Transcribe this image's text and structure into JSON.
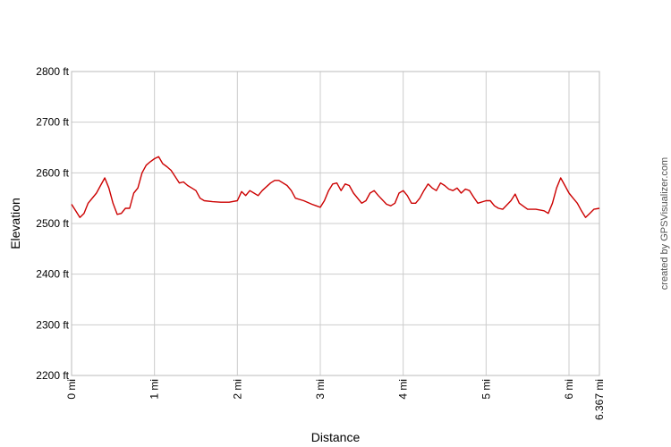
{
  "chart_data": {
    "type": "line",
    "xlabel": "Distance",
    "ylabel": "Elevation",
    "credit": "created by GPSVisualizer.com",
    "xlim": [
      0,
      6.367
    ],
    "ylim": [
      2200,
      2800
    ],
    "grid": true,
    "line_color": "#cc0000",
    "x_ticks": [
      {
        "value": 0,
        "label": "0 mi"
      },
      {
        "value": 1,
        "label": "1 mi"
      },
      {
        "value": 2,
        "label": "2 mi"
      },
      {
        "value": 3,
        "label": "3 mi"
      },
      {
        "value": 4,
        "label": "4 mi"
      },
      {
        "value": 5,
        "label": "5 mi"
      },
      {
        "value": 6,
        "label": "6 mi"
      },
      {
        "value": 6.367,
        "label": "6.367 mi"
      }
    ],
    "y_ticks": [
      {
        "value": 2200,
        "label": "2200 ft"
      },
      {
        "value": 2300,
        "label": "2300 ft"
      },
      {
        "value": 2400,
        "label": "2400 ft"
      },
      {
        "value": 2500,
        "label": "2500 ft"
      },
      {
        "value": 2600,
        "label": "2600 ft"
      },
      {
        "value": 2700,
        "label": "2700 ft"
      },
      {
        "value": 2800,
        "label": "2800 ft"
      }
    ],
    "series": [
      {
        "x": [
          0,
          0.05,
          0.1,
          0.15,
          0.2,
          0.3,
          0.35,
          0.4,
          0.45,
          0.5,
          0.55,
          0.6,
          0.65,
          0.7,
          0.75,
          0.8,
          0.85,
          0.9,
          0.95,
          1.0,
          1.05,
          1.1,
          1.15,
          1.2,
          1.3,
          1.35,
          1.4,
          1.45,
          1.5,
          1.55,
          1.6,
          1.7,
          1.8,
          1.9,
          2.0,
          2.05,
          2.1,
          2.15,
          2.2,
          2.25,
          2.3,
          2.4,
          2.45,
          2.5,
          2.6,
          2.65,
          2.7,
          2.8,
          2.9,
          2.95,
          3.0,
          3.05,
          3.1,
          3.15,
          3.2,
          3.25,
          3.3,
          3.35,
          3.4,
          3.5,
          3.55,
          3.6,
          3.65,
          3.7,
          3.8,
          3.85,
          3.9,
          3.95,
          4.0,
          4.05,
          4.1,
          4.15,
          4.2,
          4.25,
          4.3,
          4.35,
          4.4,
          4.45,
          4.5,
          4.55,
          4.6,
          4.65,
          4.7,
          4.75,
          4.8,
          4.85,
          4.9,
          5.0,
          5.05,
          5.1,
          5.15,
          5.2,
          5.3,
          5.35,
          5.4,
          5.5,
          5.6,
          5.7,
          5.75,
          5.8,
          5.85,
          5.9,
          5.95,
          6.0,
          6.05,
          6.1,
          6.15,
          6.2,
          6.25,
          6.3,
          6.367
        ],
        "y": [
          2538,
          2525,
          2512,
          2520,
          2540,
          2560,
          2575,
          2590,
          2570,
          2540,
          2518,
          2520,
          2530,
          2530,
          2560,
          2570,
          2600,
          2615,
          2622,
          2628,
          2632,
          2618,
          2612,
          2605,
          2580,
          2582,
          2575,
          2570,
          2565,
          2550,
          2545,
          2543,
          2542,
          2542,
          2545,
          2563,
          2555,
          2565,
          2560,
          2555,
          2565,
          2580,
          2585,
          2585,
          2575,
          2565,
          2550,
          2545,
          2538,
          2535,
          2532,
          2545,
          2565,
          2578,
          2580,
          2565,
          2578,
          2575,
          2560,
          2540,
          2545,
          2560,
          2565,
          2555,
          2538,
          2535,
          2540,
          2560,
          2565,
          2555,
          2540,
          2540,
          2550,
          2565,
          2578,
          2570,
          2565,
          2580,
          2575,
          2568,
          2565,
          2570,
          2560,
          2568,
          2565,
          2552,
          2540,
          2545,
          2545,
          2535,
          2530,
          2528,
          2545,
          2558,
          2540,
          2528,
          2528,
          2525,
          2520,
          2540,
          2570,
          2590,
          2575,
          2560,
          2550,
          2540,
          2525,
          2512,
          2520,
          2528,
          2530
        ]
      }
    ]
  }
}
